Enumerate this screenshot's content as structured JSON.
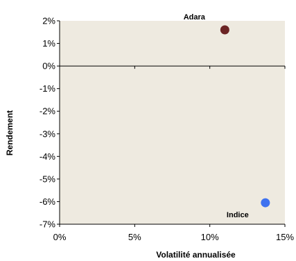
{
  "chart_data": {
    "type": "scatter",
    "xlabel": "Volatilité annualisée",
    "ylabel": "Rendement",
    "xlim": [
      0,
      15
    ],
    "ylim": [
      -7,
      2
    ],
    "x_ticks": [
      0,
      5,
      10,
      15
    ],
    "x_tick_labels": [
      "0%",
      "5%",
      "10%",
      "15%"
    ],
    "y_ticks": [
      2,
      1,
      0,
      -1,
      -2,
      -3,
      -4,
      -5,
      -6,
      -7
    ],
    "y_tick_labels": [
      "2%",
      "1%",
      "0%",
      "-1%",
      "-2%",
      "-3%",
      "-4%",
      "-5%",
      "-6%",
      "-7%"
    ],
    "grid": false,
    "plot_background": "#EEEAE0",
    "points": [
      {
        "label": "Adara",
        "x": 11.0,
        "y": 1.6,
        "color": "#6B2424"
      },
      {
        "label": "Indice",
        "x": 13.7,
        "y": -6.05,
        "color": "#3E72F0"
      }
    ]
  }
}
